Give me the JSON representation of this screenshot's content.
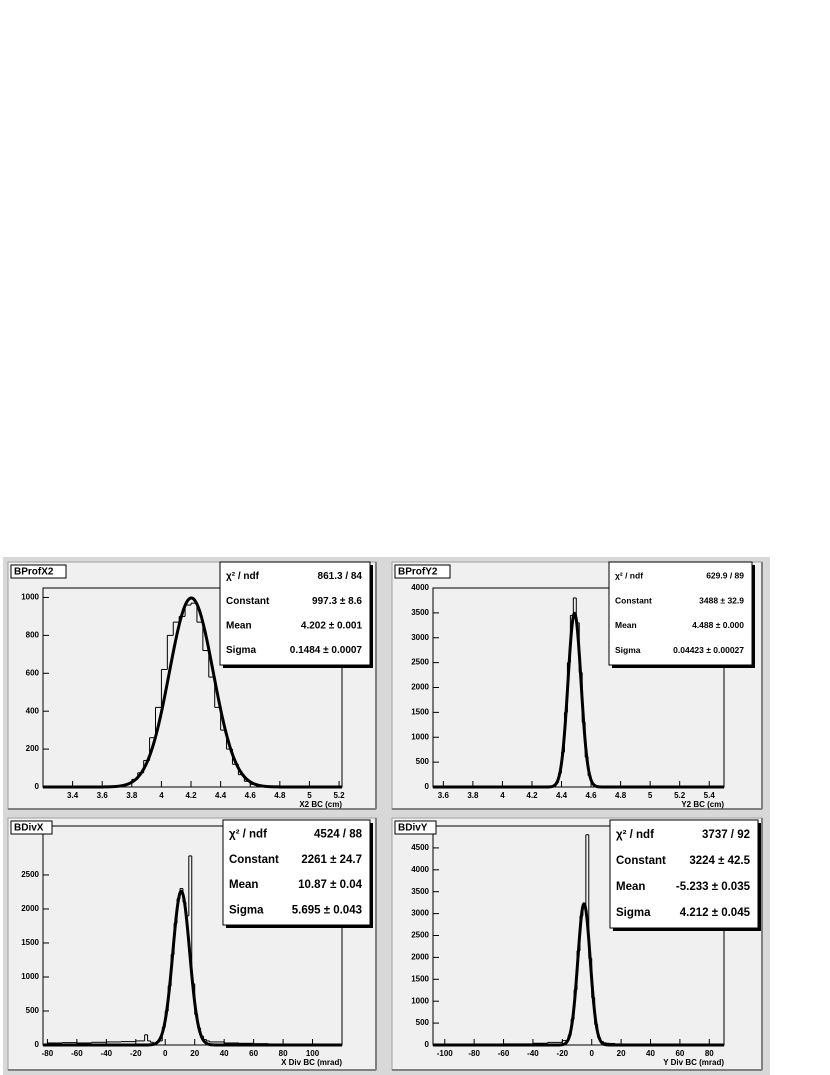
{
  "chart_data": [
    {
      "type": "histogram",
      "title": "BProfX2",
      "x_label": "X2 BC (cm)",
      "bins": [
        3.68,
        3.72,
        3.76,
        3.8,
        3.84,
        3.88,
        3.92,
        3.96,
        4.0,
        4.04,
        4.08,
        4.12,
        4.16,
        4.2,
        4.24,
        4.28,
        4.32,
        4.36,
        4.4,
        4.44,
        4.48,
        4.52,
        4.56,
        4.6,
        4.64,
        4.68,
        4.72
      ],
      "values": [
        3,
        8,
        18,
        40,
        75,
        140,
        260,
        420,
        620,
        800,
        870,
        900,
        960,
        970,
        870,
        720,
        580,
        420,
        300,
        200,
        120,
        65,
        30,
        14,
        6,
        3
      ],
      "xlim": [
        3.2,
        5.22
      ],
      "ylim": [
        0,
        1050
      ],
      "xticks": [
        3.4,
        3.6,
        3.8,
        4,
        4.2,
        4.4,
        4.6,
        4.8,
        5,
        5.2
      ],
      "yticks": [
        0,
        200,
        400,
        600,
        800,
        1000
      ],
      "stats": [
        {
          "label": "χ² / ndf",
          "text": "861.3 / 84"
        },
        {
          "label": "Constant",
          "value": 997.3,
          "value_label": "997.3 ± 8.6"
        },
        {
          "label": "Mean",
          "value": 4.202,
          "value_label": "4.202 ± 0.001"
        },
        {
          "label": "Sigma",
          "value": 0.1484,
          "value_label": "0.1484 ± 0.0007"
        }
      ]
    },
    {
      "type": "histogram",
      "title": "BProfY2",
      "x_label": "Y2 BC (cm)",
      "bins": [
        4.36,
        4.38,
        4.4,
        4.42,
        4.44,
        4.46,
        4.48,
        4.5,
        4.52,
        4.54,
        4.56,
        4.58,
        4.6,
        4.62
      ],
      "values": [
        90,
        280,
        700,
        1500,
        2500,
        3450,
        3800,
        3300,
        2300,
        1300,
        600,
        230,
        80
      ],
      "xlim": [
        3.53,
        5.5
      ],
      "ylim": [
        0,
        4000
      ],
      "xticks": [
        3.6,
        3.8,
        4,
        4.2,
        4.4,
        4.6,
        4.8,
        5,
        5.2,
        5.4
      ],
      "yticks": [
        0,
        500,
        1000,
        1500,
        2000,
        2500,
        3000,
        3500,
        4000
      ],
      "stats": [
        {
          "label": "χ² / ndf",
          "text": "629.9 / 89"
        },
        {
          "label": "Constant",
          "value": 3488,
          "value_label": "3488 ± 32.9"
        },
        {
          "label": "Mean",
          "value": 4.488,
          "value_label": "4.488 ± 0.000"
        },
        {
          "label": "Sigma",
          "value": 0.04423,
          "value_label": "0.04423 ± 0.00027"
        }
      ]
    },
    {
      "type": "histogram",
      "title": "BDivX",
      "x_label": "X Div BC (mrad)",
      "bins": [
        -80,
        -70,
        -60,
        -50,
        -40,
        -30,
        -20,
        -14,
        -12,
        -10,
        -8,
        -6,
        -4,
        -2,
        0,
        2,
        4,
        6,
        8,
        10,
        12,
        14,
        16,
        18,
        20,
        22,
        24,
        26,
        28,
        30,
        40,
        50,
        60,
        70,
        80,
        90,
        100,
        110,
        120
      ],
      "values": [
        30,
        35,
        30,
        40,
        45,
        50,
        60,
        150,
        60,
        40,
        30,
        40,
        60,
        260,
        500,
        870,
        1330,
        1790,
        2150,
        2300,
        2100,
        1900,
        2780,
        900,
        450,
        250,
        130,
        80,
        60,
        45,
        30,
        25,
        20,
        15,
        10,
        8,
        5,
        3
      ],
      "xlim": [
        -83,
        120
      ],
      "ylim": [
        0,
        3220
      ],
      "xticks": [
        -80,
        -60,
        -40,
        -20,
        0,
        20,
        40,
        60,
        80,
        100
      ],
      "yticks": [
        0,
        500,
        1000,
        1500,
        2000,
        2500
      ],
      "stats": [
        {
          "label": "χ² / ndf",
          "text": "4524 / 88"
        },
        {
          "label": "Constant",
          "value": 2261,
          "value_label": "2261 ± 24.7"
        },
        {
          "label": "Mean",
          "value": 10.87,
          "value_label": "10.87 ± 0.04"
        },
        {
          "label": "Sigma",
          "value": 5.695,
          "value_label": "5.695 ± 0.043"
        }
      ]
    },
    {
      "type": "histogram",
      "title": "BDivY",
      "x_label": "Y Div BC (mrad)",
      "bins": [
        -100,
        -80,
        -60,
        -40,
        -30,
        -20,
        -16,
        -14,
        -12,
        -10,
        -8,
        -6,
        -4,
        -2,
        0,
        2,
        4,
        6,
        8,
        10,
        12,
        16,
        20,
        30,
        40,
        60,
        80
      ],
      "values": [
        15,
        20,
        25,
        40,
        60,
        100,
        220,
        590,
        1260,
        2150,
        2950,
        3200,
        4800,
        1980,
        1080,
        470,
        170,
        80,
        50,
        40,
        35,
        25,
        20,
        15,
        10,
        8
      ],
      "xlim": [
        -108,
        90
      ],
      "ylim": [
        0,
        5000
      ],
      "xticks": [
        -100,
        -80,
        -60,
        -40,
        -20,
        0,
        20,
        40,
        60,
        80
      ],
      "yticks": [
        0,
        500,
        1000,
        1500,
        2000,
        2500,
        3000,
        3500,
        4000,
        4500
      ],
      "stats": [
        {
          "label": "χ² / ndf",
          "text": "3737 / 92"
        },
        {
          "label": "Constant",
          "value": 3224,
          "value_label": "3224 ± 42.5"
        },
        {
          "label": "Mean",
          "value": -5.233,
          "value_label": "-5.233 ± 0.035"
        },
        {
          "label": "Sigma",
          "value": 4.212,
          "value_label": "4.212 ± 0.045"
        }
      ]
    }
  ]
}
